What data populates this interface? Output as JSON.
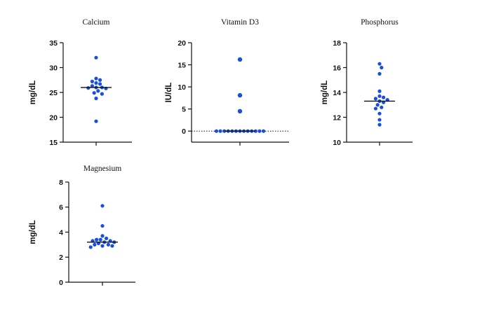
{
  "chart_data": [
    {
      "type": "scatter",
      "title": "Calcium",
      "ylabel": "mg/dL",
      "ylim": [
        15,
        35
      ],
      "yticks": [
        15,
        20,
        25,
        30,
        35
      ],
      "median": 26.0,
      "values": [
        32.0,
        27.8,
        27.5,
        27.2,
        26.9,
        26.7,
        26.3,
        26.0,
        26.0,
        25.9,
        25.8,
        25.3,
        24.9,
        24.7,
        23.8,
        19.2
      ],
      "color": "#1a4fd8"
    },
    {
      "type": "scatter",
      "title": "Vitamin D3",
      "ylabel": "IU/dL",
      "ylim": [
        -2.5,
        20
      ],
      "yticks": [
        0,
        5,
        10,
        15,
        20
      ],
      "median": 0,
      "zero_reference_line": true,
      "values": [
        16.2,
        8.1,
        4.5,
        0,
        0,
        0,
        0,
        0,
        0,
        0,
        0,
        0,
        0,
        0,
        0,
        0
      ],
      "color": "#1a4fd8"
    },
    {
      "type": "scatter",
      "title": "Phosphorus",
      "ylabel": "mg/dL",
      "ylim": [
        10,
        18
      ],
      "yticks": [
        10,
        12,
        14,
        16,
        18
      ],
      "median": 13.3,
      "values": [
        16.3,
        16.0,
        15.5,
        14.1,
        13.7,
        13.6,
        13.5,
        13.4,
        13.3,
        13.2,
        13.0,
        12.8,
        12.7,
        12.3,
        11.8,
        11.4
      ],
      "color": "#1a4fd8"
    },
    {
      "type": "scatter",
      "title": "Magnesium",
      "ylabel": "mg/dL",
      "ylim": [
        0,
        8
      ],
      "yticks": [
        0,
        2,
        4,
        6,
        8
      ],
      "median": 3.2,
      "values": [
        6.1,
        4.5,
        3.7,
        3.5,
        3.4,
        3.4,
        3.3,
        3.3,
        3.2,
        3.2,
        3.1,
        3.0,
        3.0,
        2.9,
        2.9,
        2.8
      ],
      "color": "#1a4fd8"
    }
  ]
}
